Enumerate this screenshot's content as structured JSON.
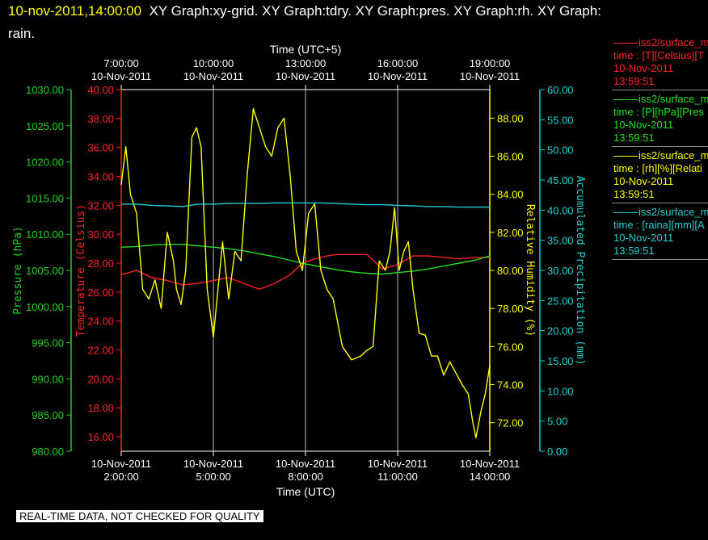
{
  "header": {
    "timestamp": "10-nov-2011,14:00:00",
    "graphs_line1": "XY Graph:xy-grid.  XY Graph:tdry.  XY Graph:pres.  XY Graph:rh.  XY Graph:",
    "graphs_line2": "rain."
  },
  "legend": [
    {
      "color": "#ff2020",
      "name": "iss2/surface_me",
      "var": "time : [T][Celsius][T",
      "date": "10-Nov-2011",
      "time": "13:59:51"
    },
    {
      "color": "#20e020",
      "name": "iss2/surface_me",
      "var": "time : [P][hPa][Pres",
      "date": "10-Nov-2011",
      "time": "13:59:51"
    },
    {
      "color": "#ffff00",
      "name": "iss2/surface_me",
      "var": "time : [rh][%][Relati",
      "date": "10-Nov-2011",
      "time": "13:59:51"
    },
    {
      "color": "#20d0d0",
      "name": "iss2/surface_me",
      "var": "time : [raina][mm][A",
      "date": "10-Nov-2011",
      "time": "13:59:51"
    }
  ],
  "banner": "REAL-TIME DATA, NOT CHECKED FOR QUALITY",
  "chart_data": {
    "type": "line",
    "x_axis": {
      "label": "Time (UTC)",
      "ticks": [
        {
          "hour": 2,
          "date": "10-Nov-2011",
          "time": "2:00:00"
        },
        {
          "hour": 5,
          "date": "10-Nov-2011",
          "time": "5:00:00"
        },
        {
          "hour": 8,
          "date": "10-Nov-2011",
          "time": "8:00:00"
        },
        {
          "hour": 11,
          "date": "10-Nov-2011",
          "time": "11:00:00"
        },
        {
          "hour": 14,
          "date": "10-Nov-2011",
          "time": "14:00:00"
        }
      ],
      "range_hours": [
        2,
        14
      ]
    },
    "x_top_axis": {
      "label": "Time (UTC+5)",
      "ticks": [
        {
          "hour": 2,
          "date": "10-Nov-2011",
          "time": "7:00:00"
        },
        {
          "hour": 5,
          "date": "10-Nov-2011",
          "time": "10:00:00"
        },
        {
          "hour": 8,
          "date": "10-Nov-2011",
          "time": "13:00:00"
        },
        {
          "hour": 11,
          "date": "10-Nov-2011",
          "time": "16:00:00"
        },
        {
          "hour": 14,
          "date": "10-Nov-2011",
          "time": "19:00:00"
        }
      ]
    },
    "y_axes": [
      {
        "id": "pres",
        "label": "Pressure (hPa)",
        "color": "#20d020",
        "range": [
          980,
          1030
        ],
        "ticks": [
          "980.00",
          "985.00",
          "990.00",
          "995.00",
          "1000.00",
          "1005.00",
          "1010.00",
          "1015.00",
          "1020.00",
          "1025.00",
          "1030.00"
        ]
      },
      {
        "id": "tdry",
        "label": "Temperature (Celsius)",
        "color": "#ff2020",
        "range": [
          15,
          40
        ],
        "ticks": [
          "16.00",
          "18.00",
          "20.00",
          "22.00",
          "24.00",
          "26.00",
          "28.00",
          "30.00",
          "32.00",
          "34.00",
          "36.00",
          "38.00",
          "40.00"
        ]
      },
      {
        "id": "rh",
        "label": "Relative Humidity (%)",
        "color": "#ffff00",
        "range": [
          70.5,
          89.5
        ],
        "ticks": [
          "72.00",
          "74.00",
          "76.00",
          "78.00",
          "80.00",
          "82.00",
          "84.00",
          "86.00",
          "88.00"
        ]
      },
      {
        "id": "rain",
        "label": "Accumulated Precipitation (mm)",
        "color": "#20d0d0",
        "range": [
          0,
          60
        ],
        "ticks": [
          "0.00",
          "5.00",
          "10.00",
          "15.00",
          "20.00",
          "25.00",
          "30.00",
          "35.00",
          "40.00",
          "45.00",
          "50.00",
          "55.00",
          "60.00"
        ]
      }
    ],
    "grid": "vertical at x ticks",
    "series": [
      {
        "axis": "tdry",
        "color": "#ff2020",
        "x": [
          2,
          2.5,
          3,
          3.5,
          4,
          4.5,
          5,
          5.5,
          6,
          6.5,
          7,
          7.5,
          7.9,
          8.3,
          8.7,
          9,
          9.5,
          10,
          10.5,
          11,
          11.5,
          12,
          12.5,
          13,
          13.5,
          14
        ],
        "y": [
          27.2,
          27.5,
          27.0,
          26.8,
          26.5,
          26.6,
          26.8,
          27.0,
          26.6,
          26.2,
          26.6,
          27.2,
          28.0,
          28.3,
          28.5,
          28.6,
          28.6,
          28.6,
          27.6,
          27.9,
          28.5,
          28.5,
          28.4,
          28.3,
          28.4,
          28.4
        ]
      },
      {
        "axis": "pres",
        "color": "#20e020",
        "x": [
          2,
          2.5,
          3,
          3.5,
          4,
          4.5,
          5,
          5.5,
          6,
          6.5,
          7,
          7.5,
          8,
          8.5,
          9,
          9.5,
          10,
          10.5,
          11,
          11.5,
          12,
          12.5,
          13,
          13.5,
          14
        ],
        "y": [
          1008.2,
          1008.3,
          1008.5,
          1008.6,
          1008.6,
          1008.4,
          1008.2,
          1008.0,
          1007.7,
          1007.3,
          1006.9,
          1006.4,
          1005.9,
          1005.5,
          1005.1,
          1004.8,
          1004.6,
          1004.5,
          1004.7,
          1004.9,
          1005.2,
          1005.6,
          1006.0,
          1006.4,
          1007.0
        ]
      },
      {
        "axis": "rh",
        "color": "#ffff00",
        "x": [
          2,
          2.15,
          2.3,
          2.5,
          2.7,
          2.9,
          3.1,
          3.3,
          3.5,
          3.7,
          3.8,
          3.95,
          4.1,
          4.3,
          4.45,
          4.6,
          4.8,
          5.0,
          5.15,
          5.3,
          5.5,
          5.7,
          5.9,
          6.1,
          6.3,
          6.5,
          6.7,
          6.9,
          7.1,
          7.3,
          7.5,
          7.7,
          7.9,
          8.1,
          8.3,
          8.5,
          8.7,
          8.9,
          9.2,
          9.5,
          9.8,
          10.0,
          10.2,
          10.4,
          10.6,
          10.75,
          10.9,
          11.05,
          11.2,
          11.35,
          11.5,
          11.7,
          11.9,
          12.1,
          12.3,
          12.5,
          12.7,
          12.9,
          13.1,
          13.3,
          13.45,
          13.55,
          13.7,
          13.85,
          14.0
        ],
        "y": [
          84.5,
          86.5,
          84.0,
          83.0,
          79.0,
          78.5,
          79.5,
          78.0,
          82.0,
          80.5,
          79.0,
          78.2,
          80.0,
          87.0,
          87.5,
          86.5,
          79.0,
          76.5,
          79.0,
          81.5,
          78.5,
          81.0,
          80.5,
          85.0,
          88.5,
          87.5,
          86.5,
          86.0,
          87.5,
          88.0,
          85.0,
          81.0,
          80.0,
          83.0,
          83.5,
          80.0,
          79.0,
          78.5,
          76.0,
          75.3,
          75.5,
          75.8,
          76.0,
          80.5,
          80.0,
          81.0,
          83.3,
          80.0,
          81.0,
          81.5,
          79.0,
          76.7,
          76.6,
          75.5,
          75.5,
          74.5,
          75.2,
          74.6,
          74.0,
          73.5,
          72.0,
          71.2,
          72.5,
          73.5,
          75.0
        ]
      },
      {
        "axis": "rain",
        "color": "#20d0d0",
        "x": [
          2,
          2.5,
          3,
          3.5,
          4,
          4.5,
          5,
          5.5,
          6,
          6.5,
          7,
          7.5,
          8,
          8.5,
          9,
          9.5,
          10,
          10.5,
          11,
          11.5,
          12,
          12.5,
          13,
          13.5,
          14
        ],
        "y": [
          41.0,
          41.0,
          40.8,
          40.7,
          40.6,
          41.0,
          41.0,
          41.1,
          41.1,
          41.1,
          41.2,
          41.2,
          41.2,
          41.2,
          41.1,
          41.0,
          40.9,
          40.9,
          40.8,
          40.7,
          40.6,
          40.6,
          40.5,
          40.5,
          40.5
        ]
      }
    ]
  }
}
